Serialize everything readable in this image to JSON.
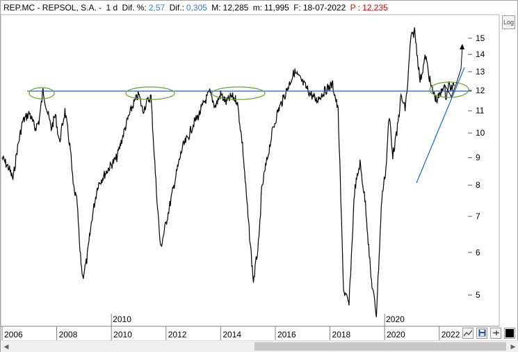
{
  "header": {
    "symbol": "REP.MC - REPSOL,  S.A.  -",
    "period": "1 d",
    "change_pct_label": "Dif. %:",
    "change_pct_value": "2,57",
    "change_label": "Dif.:",
    "change_value": "0,305",
    "max_label": "M:",
    "max_value": "12,285",
    "min_label": "m:",
    "min_value": "11,995",
    "date_label": "F:",
    "date_value": "18-07-2022",
    "price_label": "P :",
    "price_value": "12,235"
  },
  "log_button": {
    "label": "Log"
  },
  "colors": {
    "accent_blue": "#3a7bd5",
    "price_red": "#e00000",
    "trend_line": "#1f5fbf",
    "ellipse": "#6aa535"
  },
  "toolbar": {
    "icons": [
      "chart-style-icon",
      "save-icon",
      "pin-icon",
      "color-box-icon"
    ]
  },
  "chart_data": {
    "type": "line",
    "scale": "log",
    "ylim": [
      4.4,
      16.5
    ],
    "y_ticks": [
      5,
      6,
      7,
      8,
      9,
      10,
      11,
      12,
      13,
      14,
      15
    ],
    "x_ticks": [
      "2006",
      "2008",
      "2010",
      "2012",
      "2014",
      "2016",
      "2018",
      "2020",
      "2022"
    ],
    "x_range": [
      2006.0,
      2023.0
    ],
    "year_markers": [
      "2010",
      "2020"
    ],
    "series": [
      {
        "x": [
          2006.0,
          2006.25,
          2006.4,
          2006.55,
          2006.75,
          2007.0,
          2007.2,
          2007.35,
          2007.5,
          2007.65,
          2007.8,
          2007.95,
          2008.1,
          2008.3,
          2008.5,
          2008.6,
          2008.75,
          2008.85,
          2008.95,
          2009.1,
          2009.3,
          2009.5,
          2009.7,
          2009.9,
          2010.2,
          2010.4,
          2010.6,
          2010.8,
          2011.0,
          2011.15,
          2011.3,
          2011.45,
          2011.55,
          2011.65,
          2011.8,
          2012.0,
          2012.2,
          2012.4,
          2012.6,
          2012.8,
          2013.0,
          2013.2,
          2013.4,
          2013.6,
          2013.8,
          2014.0,
          2014.2,
          2014.4,
          2014.6,
          2014.8,
          2015.0,
          2015.2,
          2015.4,
          2015.5,
          2015.6,
          2015.75,
          2015.9,
          2016.1,
          2016.3,
          2016.5,
          2016.7,
          2016.9,
          2017.1,
          2017.3,
          2017.5,
          2017.7,
          2017.9,
          2018.1,
          2018.3,
          2018.5,
          2018.7,
          2018.9,
          2019.1,
          2019.3,
          2019.5,
          2019.7,
          2019.9,
          2020.05,
          2020.15,
          2020.2,
          2020.3,
          2020.45,
          2020.6,
          2020.75,
          2020.85,
          2020.95,
          2021.1,
          2021.3,
          2021.5,
          2021.7,
          2021.9,
          2022.05,
          2022.15,
          2022.25,
          2022.35,
          2022.45,
          2022.55
        ],
        "y": [
          9.0,
          8.6,
          8.2,
          9.3,
          10.5,
          10.9,
          10.2,
          10.5,
          12.0,
          11.0,
          10.2,
          10.8,
          9.6,
          11.0,
          9.3,
          8.0,
          7.4,
          6.0,
          5.4,
          5.8,
          7.0,
          8.0,
          8.3,
          8.6,
          9.0,
          9.8,
          10.6,
          11.3,
          11.8,
          11.0,
          11.4,
          11.7,
          9.5,
          7.8,
          6.1,
          6.8,
          7.6,
          8.5,
          9.4,
          9.8,
          10.4,
          10.8,
          11.4,
          11.9,
          11.2,
          11.8,
          11.4,
          11.7,
          11.5,
          9.5,
          7.0,
          5.3,
          6.3,
          7.8,
          8.4,
          9.2,
          10.1,
          11.0,
          11.6,
          12.3,
          13.0,
          12.6,
          12.2,
          11.8,
          11.5,
          11.8,
          12.1,
          12.3,
          11.0,
          5.1,
          4.8,
          7.8,
          8.8,
          7.4,
          5.4,
          4.6,
          7.6,
          8.6,
          10.5,
          10.5,
          9.1,
          10.0,
          11.7,
          11.1,
          12.4,
          14.9,
          15.5,
          12.5,
          13.9,
          12.2,
          11.5,
          11.8,
          12.3,
          11.7,
          12.3,
          12.1,
          12.235
        ]
      }
    ]
  }
}
